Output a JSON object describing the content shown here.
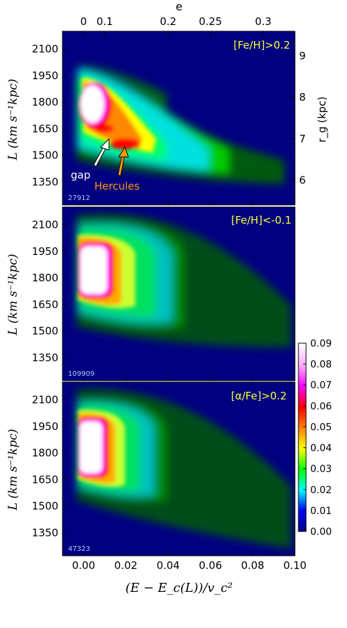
{
  "figure": {
    "top_axis_label": "e",
    "right_axis_label": "r_g (kpc)",
    "x_axis_label": "(E − E_c(L))/v_c²",
    "y_axis_label": "L (km s⁻¹kpc)"
  },
  "chart_data": [
    {
      "type": "heatmap",
      "panel": "top",
      "label": "[Fe/H]>0.2",
      "count": "27912",
      "annotations": {
        "gap": "gap",
        "hercules": "Hercules"
      },
      "x_ticks": [
        "0.00",
        "0.02",
        "0.04",
        "0.06",
        "0.08",
        "0.10"
      ],
      "y_ticks": [
        "2100",
        "1950",
        "1800",
        "1650",
        "1500",
        "1350"
      ],
      "top_ticks": [
        "0",
        "0.1",
        "0.2",
        "0.25",
        "0.3"
      ],
      "right_ticks": [
        "9",
        "8",
        "7",
        "6"
      ],
      "xlim": [
        -0.01,
        0.1
      ],
      "ylim": [
        1220,
        2200
      ],
      "right_ylim_kpc": [
        5.4,
        9.6
      ],
      "top_tick_positions_x": [
        0.0,
        0.01,
        0.04,
        0.06,
        0.085
      ]
    },
    {
      "type": "heatmap",
      "panel": "middle",
      "label": "[Fe/H]<-0.1",
      "count": "109909",
      "x_ticks": [
        "0.00",
        "0.02",
        "0.04",
        "0.06",
        "0.08",
        "0.10"
      ],
      "y_ticks": [
        "2100",
        "1950",
        "1800",
        "1650",
        "1500",
        "1350"
      ],
      "xlim": [
        -0.01,
        0.1
      ],
      "ylim": [
        1220,
        2200
      ]
    },
    {
      "type": "heatmap",
      "panel": "bottom",
      "label": "[α/Fe]>0.2",
      "count": "47323",
      "x_ticks": [
        "0.00",
        "0.02",
        "0.04",
        "0.06",
        "0.08",
        "0.10"
      ],
      "y_ticks": [
        "2100",
        "1950",
        "1800",
        "1650",
        "1500",
        "1350"
      ],
      "xlim": [
        -0.01,
        0.1
      ],
      "ylim": [
        1220,
        2200
      ]
    }
  ],
  "colorbar": {
    "ticks": [
      "0.09",
      "0.08",
      "0.07",
      "0.06",
      "0.05",
      "0.04",
      "0.03",
      "0.02",
      "0.01",
      "0.00"
    ],
    "range": [
      0.0,
      0.09
    ]
  },
  "colors": {
    "background": "#000080",
    "panel_label": "#ffff33",
    "hercules": "#ff9900",
    "count": "#aaccff"
  }
}
